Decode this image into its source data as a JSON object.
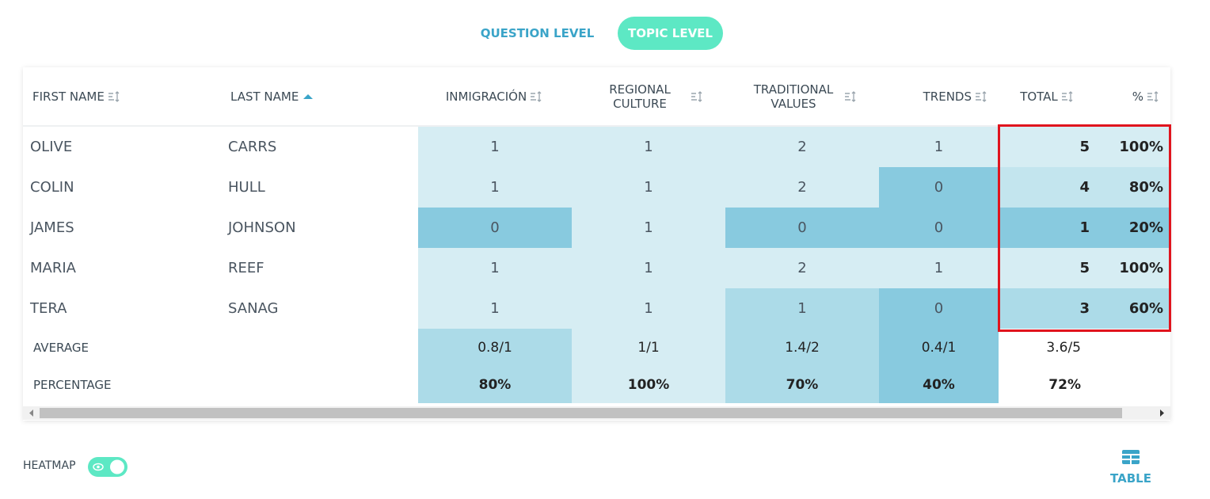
{
  "tabs": [
    "QUESTION LEVEL",
    "TOPIC LEVEL"
  ],
  "table": {
    "headers": [
      "FIRST NAME",
      "LAST NAME",
      "INMIGRACIÓN",
      "REGIONAL CULTURE",
      "TRADITIONAL VALUES",
      "TRENDS",
      "TOTAL",
      "%"
    ],
    "rows": [
      [
        "OLIVE",
        "CARRS",
        "1",
        "1",
        "2",
        "1",
        "5",
        "100%"
      ],
      [
        "COLIN",
        "HULL",
        "1",
        "1",
        "2",
        "0",
        "4",
        "80%"
      ],
      [
        "JAMES",
        "JOHNSON",
        "0",
        "1",
        "0",
        "0",
        "1",
        "20%"
      ],
      [
        "MARIA",
        "REEF",
        "1",
        "1",
        "2",
        "1",
        "5",
        "100%"
      ],
      [
        "TERA",
        "SANAG",
        "1",
        "1",
        "1",
        "0",
        "3",
        "60%"
      ]
    ],
    "summary": [
      {
        "label": "AVERAGE",
        "cells": [
          "0.8/1",
          "1/1",
          "1.4/2",
          "0.4/1",
          "3.6/5"
        ]
      },
      {
        "label": "PERCENTAGE",
        "cells": [
          "80%",
          "100%",
          "70%",
          "40%",
          "72%"
        ]
      }
    ]
  },
  "heatmap_label": "HEATMAP",
  "view_button": "TABLE"
}
